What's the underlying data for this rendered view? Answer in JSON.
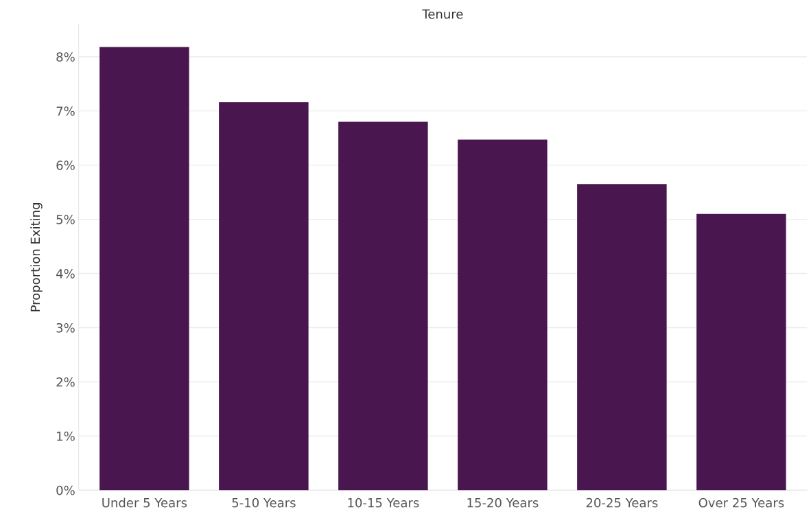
{
  "chart_data": {
    "type": "bar",
    "title": "Tenure",
    "ylabel": "Proportion Exiting",
    "categories": [
      "Under 5 Years",
      "5-10 Years",
      "10-15 Years",
      "15-20 Years",
      "20-25 Years",
      "Over 25 Years"
    ],
    "values": [
      8.18,
      7.16,
      6.8,
      6.47,
      5.65,
      5.1
    ],
    "color": "#4a1650",
    "ylim": [
      0,
      8.6
    ],
    "yticks": [
      {
        "value": 0,
        "label": "0%"
      },
      {
        "value": 1,
        "label": "1%"
      },
      {
        "value": 2,
        "label": "2%"
      },
      {
        "value": 3,
        "label": "3%"
      },
      {
        "value": 4,
        "label": "4%"
      },
      {
        "value": 5,
        "label": "5%"
      },
      {
        "value": 6,
        "label": "6%"
      },
      {
        "value": 7,
        "label": "7%"
      },
      {
        "value": 8,
        "label": "8%"
      }
    ],
    "grid": "y"
  }
}
